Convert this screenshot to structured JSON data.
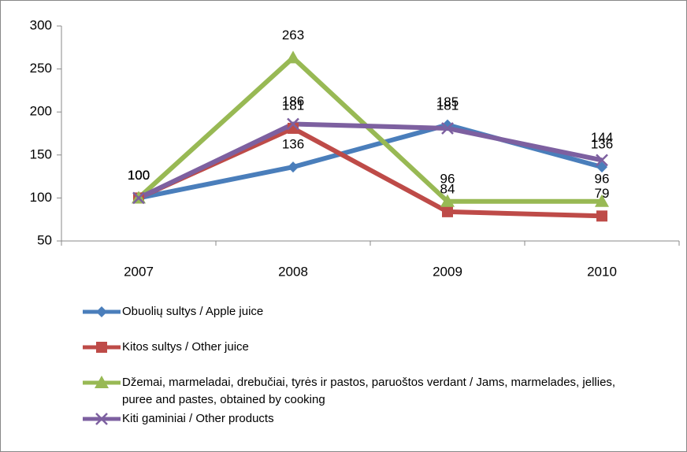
{
  "chart_data": {
    "type": "line",
    "categories": [
      "2007",
      "2008",
      "2009",
      "2010"
    ],
    "series": [
      {
        "name": "Obuolių  sultys / Apple juice",
        "color": "#4a7ebb",
        "marker": "diamond",
        "values": [
          100,
          136,
          185,
          136
        ]
      },
      {
        "name": "Kitos sultys / Other juice",
        "color": "#be4b48",
        "marker": "square",
        "values": [
          100,
          181,
          84,
          79
        ]
      },
      {
        "name": "Džemai, marmeladai, drebučiai, tyrės ir pastos, paruoštos verdant / Jams, marmelades, jellies, puree and pastes, obtained by cooking",
        "color": "#98b954",
        "marker": "triangle",
        "values": [
          100,
          263,
          96,
          96
        ]
      },
      {
        "name": "Kiti gaminiai / Other products",
        "color": "#7d60a0",
        "marker": "x",
        "values": [
          100,
          186,
          181,
          144
        ]
      }
    ],
    "ylim": [
      50,
      300
    ],
    "yticks": [
      50,
      100,
      150,
      200,
      250,
      300
    ],
    "grid": false
  }
}
